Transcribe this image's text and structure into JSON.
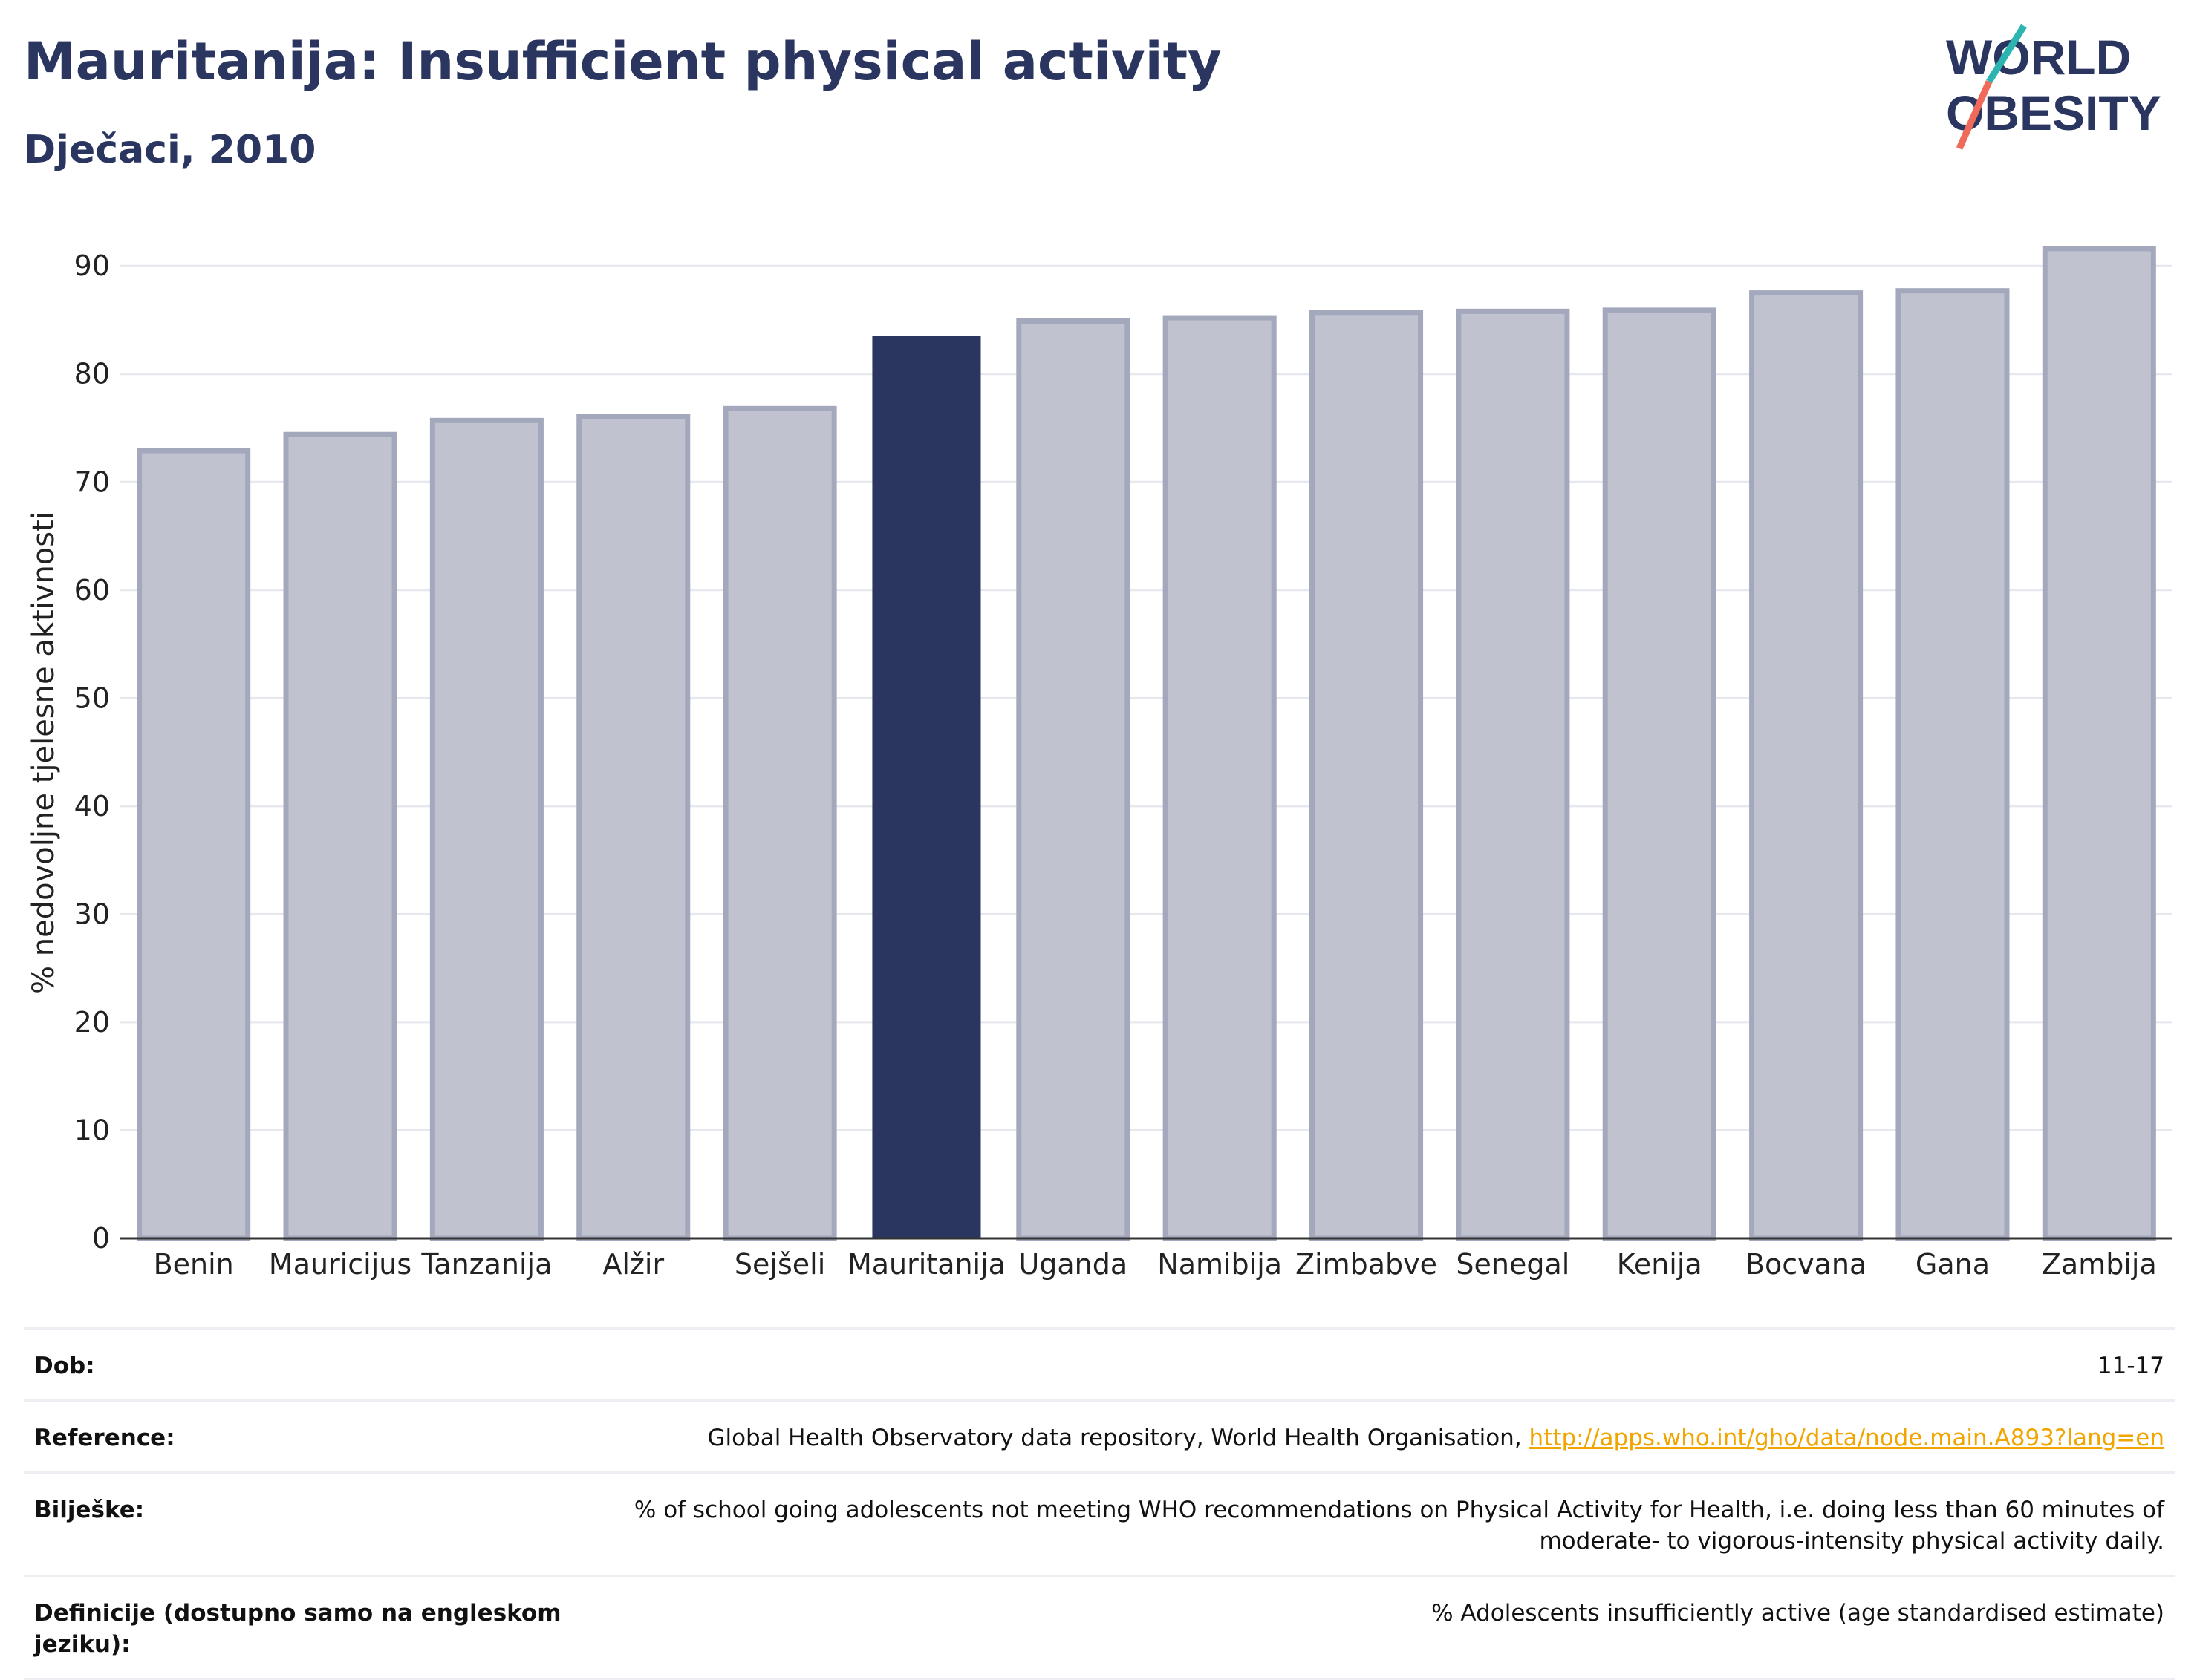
{
  "header": {
    "title": "Mauritanija: Insufficient physical activity",
    "subtitle": "Dječaci, 2010"
  },
  "logo": {
    "line1": "WORLD",
    "line2": "OBESITY"
  },
  "chart_data": {
    "type": "bar",
    "title": "Mauritanija: Insufficient physical activity",
    "subtitle": "Dječaci, 2010",
    "xlabel": "",
    "ylabel": "% nedovoljne tjelesne aktivnosti",
    "ylim": [
      0,
      94
    ],
    "yticks": [
      0,
      10,
      20,
      30,
      40,
      50,
      60,
      70,
      80,
      90
    ],
    "grid": true,
    "categories": [
      "Benin",
      "Mauricijus",
      "Tanzanija",
      "Alžir",
      "Sejšeli",
      "Mauritanija",
      "Uganda",
      "Namibija",
      "Zimbabve",
      "Senegal",
      "Kenija",
      "Bocvana",
      "Gana",
      "Zambija"
    ],
    "values": [
      72.9,
      74.4,
      75.7,
      76.1,
      76.8,
      83.5,
      84.9,
      85.2,
      85.7,
      85.8,
      85.9,
      87.5,
      87.7,
      91.6
    ],
    "highlight": "Mauritanija",
    "colors": {
      "highlight": "#2a3560",
      "bar": "#c0c3cf",
      "bar_border": "#a3a8bd"
    }
  },
  "info": [
    {
      "label": "Dob:",
      "value": "11-17"
    },
    {
      "label": "Reference:",
      "value": "Global Health Observatory data repository, World Health Organisation,",
      "link": "http://apps.who.int/gho/data/node.main.A893?lang=en"
    },
    {
      "label": "Bilješke:",
      "value": "% of school going adolescents not meeting WHO recommendations on Physical Activity for Health, i.e. doing less than 60 minutes of moderate- to vigorous-intensity physical activity daily."
    },
    {
      "label": "Definicije (dostupno samo na engleskom jeziku):",
      "value": "% Adolescents insufficiently active (age standardised estimate)"
    }
  ]
}
